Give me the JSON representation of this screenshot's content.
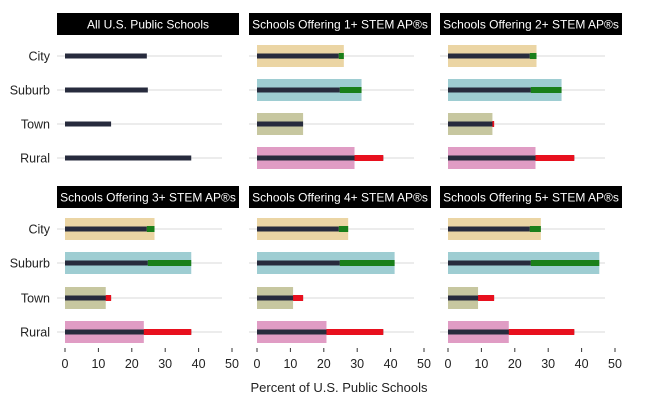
{
  "chart_data": {
    "type": "bar",
    "xlabel": "Percent of U.S. Public Schools",
    "xlim": [
      0,
      50
    ],
    "xticks": [
      0,
      10,
      20,
      30,
      40,
      50
    ],
    "categories": [
      "City",
      "Suburb",
      "Town",
      "Rural"
    ],
    "category_colors": {
      "City": "#ebd5a4",
      "Suburb": "#9ecdd2",
      "Town": "#c7c7a0",
      "Rural": "#e09cc4"
    },
    "colors": {
      "reference": "#272b3d",
      "excess": "#1a7f1a",
      "deficit": "#e8101e",
      "grid": "#d9d9d9",
      "strip": "#000000"
    },
    "reference_values": [
      24.5,
      24.8,
      13.8,
      37.8
    ],
    "panels": [
      {
        "title": "All U.S. Public Schools",
        "values": [
          24.5,
          24.8,
          13.8,
          37.8
        ]
      },
      {
        "title": "Schools Offering 1+ STEM AP®s",
        "values": [
          26.0,
          31.3,
          13.8,
          29.2
        ]
      },
      {
        "title": "Schools Offering 2+ STEM AP®s",
        "values": [
          26.5,
          34.0,
          13.3,
          26.2
        ]
      },
      {
        "title": "Schools Offering 3+ STEM AP®s",
        "values": [
          26.8,
          37.8,
          12.2,
          23.6
        ]
      },
      {
        "title": "Schools Offering 4+ STEM AP®s",
        "values": [
          27.3,
          41.2,
          10.8,
          20.8
        ]
      },
      {
        "title": "Schools Offering 5+ STEM AP®s",
        "values": [
          27.8,
          45.3,
          9.0,
          18.2
        ]
      }
    ]
  }
}
